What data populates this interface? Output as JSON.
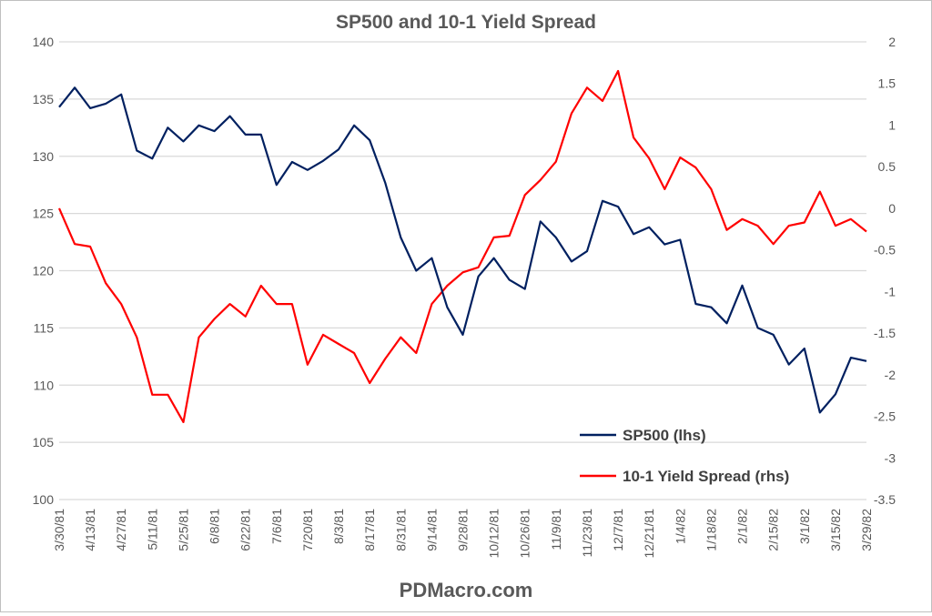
{
  "chart_data": {
    "type": "line",
    "title": "SP500 and 10-1 Yield Spread",
    "footer": "PDMacro.com",
    "x": [
      "3/30/81",
      "4/6/81",
      "4/13/81",
      "4/20/81",
      "4/27/81",
      "5/4/81",
      "5/11/81",
      "5/18/81",
      "5/25/81",
      "6/1/81",
      "6/8/81",
      "6/15/81",
      "6/22/81",
      "6/29/81",
      "7/6/81",
      "7/13/81",
      "7/20/81",
      "7/27/81",
      "8/3/81",
      "8/10/81",
      "8/17/81",
      "8/24/81",
      "8/31/81",
      "9/7/81",
      "9/14/81",
      "9/21/81",
      "9/28/81",
      "10/5/81",
      "10/12/81",
      "10/19/81",
      "10/26/81",
      "11/2/81",
      "11/9/81",
      "11/16/81",
      "11/23/81",
      "11/30/81",
      "12/7/81",
      "12/14/81",
      "12/21/81",
      "12/28/81",
      "1/4/82",
      "1/11/82",
      "1/18/82",
      "1/25/82",
      "2/1/82",
      "2/8/82",
      "2/15/82",
      "2/22/82",
      "3/1/82",
      "3/8/82",
      "3/15/82",
      "3/22/82",
      "3/29/82"
    ],
    "x_tick_labels": [
      "3/30/81",
      "4/13/81",
      "4/27/81",
      "5/11/81",
      "5/25/81",
      "6/8/81",
      "6/22/81",
      "7/6/81",
      "7/20/81",
      "8/3/81",
      "8/17/81",
      "8/31/81",
      "9/14/81",
      "9/28/81",
      "10/12/81",
      "10/26/81",
      "11/9/81",
      "11/23/81",
      "12/7/81",
      "12/21/81",
      "1/4/82",
      "1/18/82",
      "2/1/82",
      "2/15/82",
      "3/1/82",
      "3/15/82",
      "3/29/82"
    ],
    "y_left": {
      "lim": [
        100,
        140
      ],
      "ticks": [
        "100",
        "105",
        "110",
        "115",
        "120",
        "125",
        "130",
        "135",
        "140"
      ]
    },
    "y_right": {
      "lim": [
        -3.5,
        2
      ],
      "ticks": [
        "-3.5",
        "-3",
        "-2.5",
        "-2",
        "-1.5",
        "-1",
        "-0.5",
        "0",
        "0.5",
        "1",
        "1.5",
        "2"
      ]
    },
    "grid": true,
    "legend_position": "bottom-right-inside",
    "series": [
      {
        "name": "SP500 (lhs)",
        "axis": "left",
        "color": "#002060",
        "values": [
          134.3,
          136.0,
          134.2,
          134.6,
          135.4,
          130.5,
          129.8,
          132.5,
          131.3,
          132.7,
          132.2,
          133.5,
          131.9,
          131.9,
          127.5,
          129.5,
          128.8,
          129.6,
          130.6,
          132.7,
          131.4,
          127.7,
          122.9,
          120.0,
          121.1,
          116.8,
          114.4,
          119.5,
          121.1,
          119.2,
          118.4,
          124.3,
          122.9,
          120.8,
          121.7,
          126.1,
          125.6,
          123.2,
          123.8,
          122.3,
          122.7,
          117.1,
          116.8,
          115.4,
          118.7,
          115.0,
          114.4,
          111.8,
          113.2,
          107.6,
          109.2,
          112.4,
          112.1
        ]
      },
      {
        "name": "10-1 Yield Spread (rhs)",
        "axis": "right",
        "color": "#ff0000",
        "values": [
          0.0,
          -0.43,
          -0.46,
          -0.9,
          -1.15,
          -1.55,
          -2.24,
          -2.24,
          -2.57,
          -1.55,
          -1.33,
          -1.15,
          -1.3,
          -0.93,
          -1.15,
          -1.15,
          -1.88,
          -1.52,
          -1.63,
          -1.74,
          -2.1,
          -1.81,
          -1.55,
          -1.74,
          -1.15,
          -0.93,
          -0.77,
          -0.71,
          -0.35,
          -0.33,
          0.16,
          0.34,
          0.56,
          1.14,
          1.45,
          1.29,
          1.65,
          0.85,
          0.6,
          0.23,
          0.61,
          0.49,
          0.23,
          -0.26,
          -0.13,
          -0.21,
          -0.43,
          -0.21,
          -0.17,
          0.2,
          -0.21,
          -0.13,
          -0.28
        ]
      }
    ]
  }
}
